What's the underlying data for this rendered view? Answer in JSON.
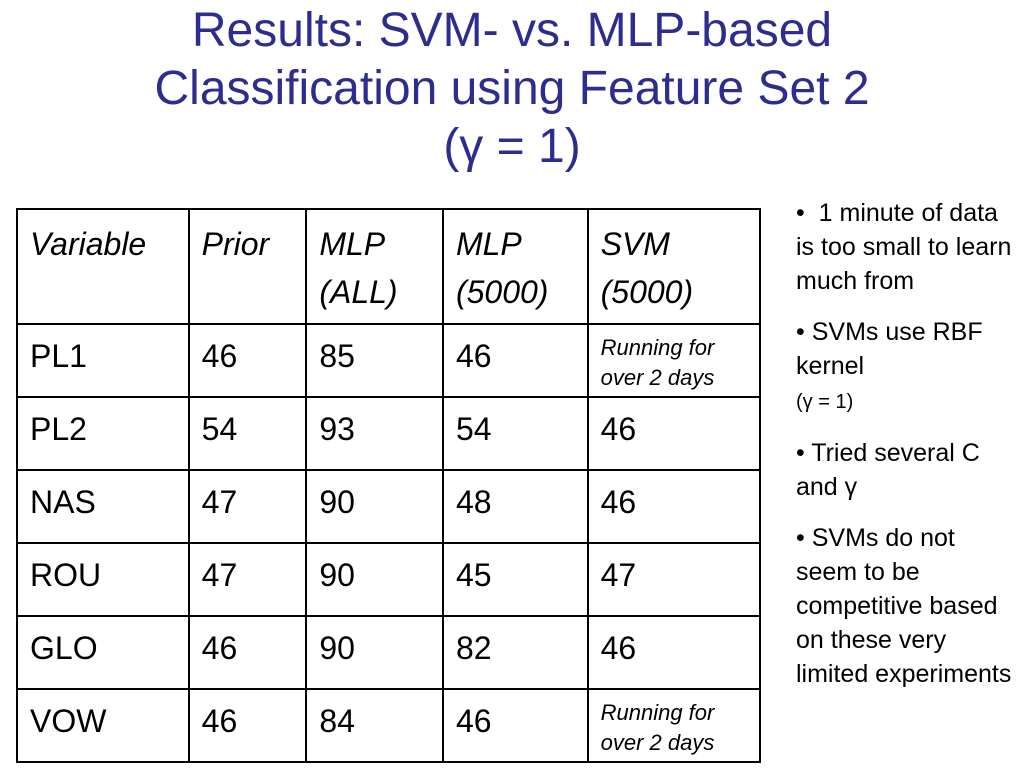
{
  "title": {
    "line1": "Results: SVM- vs. MLP-based",
    "line2": "Classification using Feature Set 2",
    "line3": "(γ = 1)"
  },
  "table": {
    "headers": [
      [
        "Variable"
      ],
      [
        "Prior"
      ],
      [
        "MLP",
        "(ALL)"
      ],
      [
        "MLP",
        "(5000)"
      ],
      [
        "SVM",
        "(5000)"
      ]
    ],
    "rows": [
      {
        "variable": "PL1",
        "prior": "46",
        "mlp_all": "85",
        "mlp_5000": "46",
        "svm_5000": "Running  for over 2 days"
      },
      {
        "variable": "PL2",
        "prior": "54",
        "mlp_all": "93",
        "mlp_5000": "54",
        "svm_5000": "46"
      },
      {
        "variable": "NAS",
        "prior": "47",
        "mlp_all": "90",
        "mlp_5000": "48",
        "svm_5000": "46"
      },
      {
        "variable": "ROU",
        "prior": "47",
        "mlp_all": "90",
        "mlp_5000": "45",
        "svm_5000": "47"
      },
      {
        "variable": "GLO",
        "prior": "46",
        "mlp_all": "90",
        "mlp_5000": "82",
        "svm_5000": "46"
      },
      {
        "variable": "VOW",
        "prior": "46",
        "mlp_all": "84",
        "mlp_5000": "46",
        "svm_5000": "Running for over 2 days"
      }
    ]
  },
  "notes": {
    "bullet": "•",
    "items": [
      {
        "text": "1 minute of data is too small to learn much from"
      },
      {
        "text": "SVMs use RBF kernel",
        "small": "(γ = 1)"
      },
      {
        "text": "Tried several C and γ"
      },
      {
        "text": "SVMs do not seem to be competitive based on these very limited experiments"
      }
    ]
  }
}
